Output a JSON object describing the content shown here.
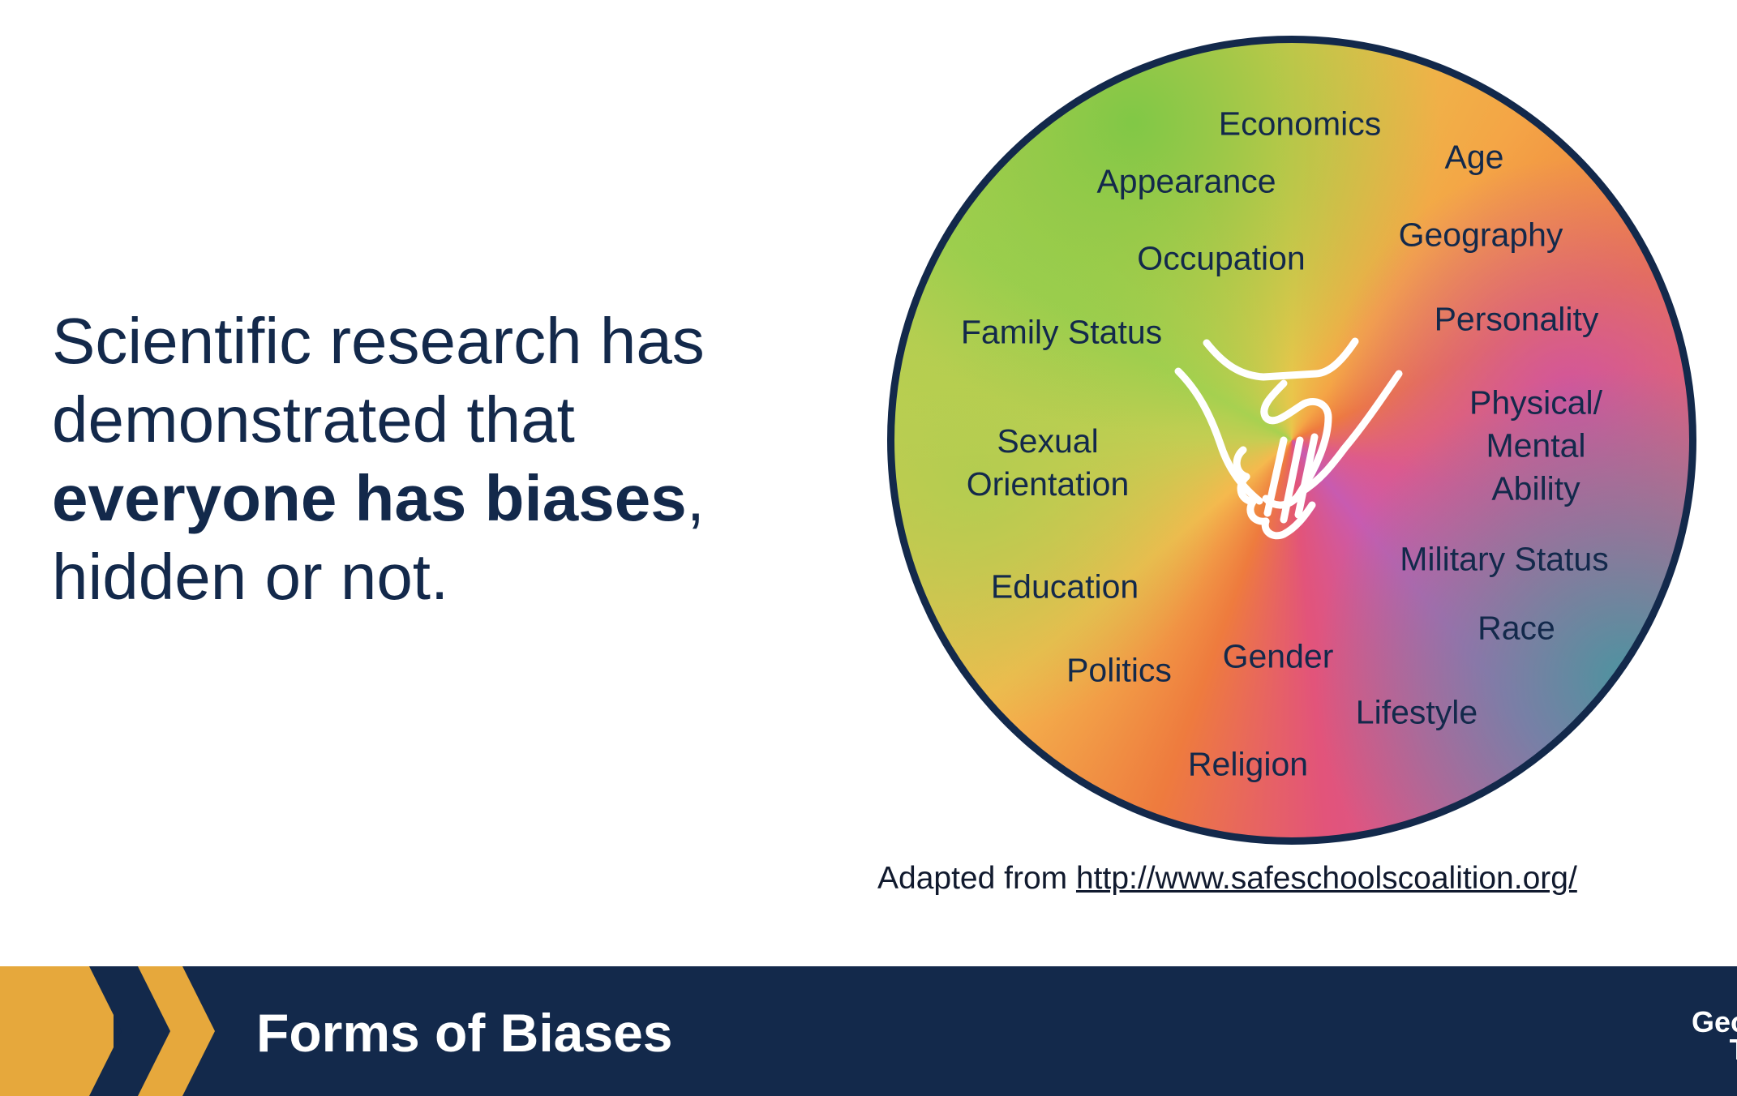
{
  "statement": {
    "part1": "Scientific research has demonstrated that ",
    "bold": "everyone has biases",
    "part2": ", hidden or not."
  },
  "circle": {
    "labels": {
      "economics": "Economics",
      "age": "Age",
      "appearance": "Appearance",
      "geography": "Geography",
      "occupation": "Occupation",
      "personality": "Personality",
      "family_status": "Family Status",
      "sexual_orientation": "Sexual\nOrientation",
      "physical_mental_ability": "Physical/\nMental Ability",
      "military_status": "Military Status",
      "education": "Education",
      "race": "Race",
      "politics": "Politics",
      "gender": "Gender",
      "lifestyle": "Lifestyle",
      "religion": "Religion"
    },
    "center_icon": "handshake-icon",
    "border_color": "#13294b"
  },
  "caption": {
    "prefix": "Adapted from ",
    "link": "http://www.safeschoolscoalition.org/"
  },
  "footer": {
    "title": "Forms of Biases",
    "logo_line1": "Georg",
    "logo_line2": "Tec",
    "bg_color": "#13294b",
    "accent_color": "#e6a83c"
  }
}
